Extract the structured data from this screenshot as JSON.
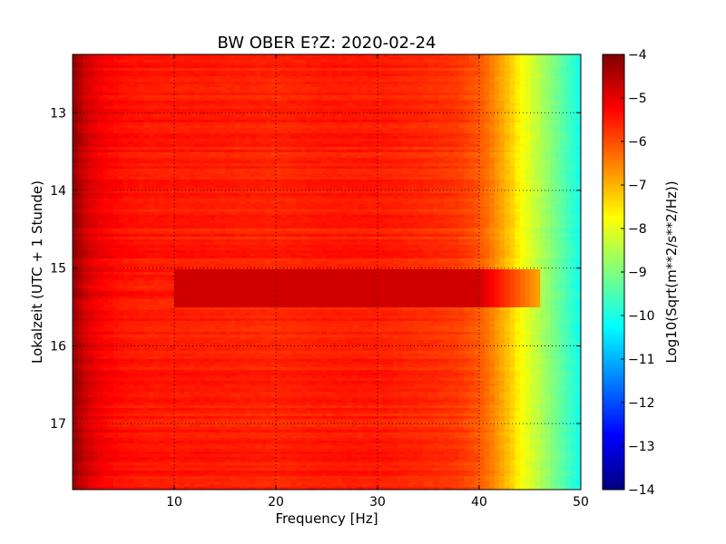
{
  "chart_data": {
    "type": "heatmap",
    "title": "BW OBER E?Z: 2020-02-24",
    "xlabel": "Frequency [Hz]",
    "ylabel": "Lokalzeit (UTC + 1 Stunde)",
    "xlim": [
      0,
      50
    ],
    "ylim": [
      12.25,
      17.85
    ],
    "x_ticks": [
      10,
      20,
      30,
      40,
      50
    ],
    "y_ticks": [
      13,
      14,
      15,
      16,
      17
    ],
    "y_inverted": true,
    "grid": true,
    "colormap": "jet",
    "colorbar": {
      "label": "Log10(Sqrt(m**2/s**2/Hz))",
      "range": [
        -14,
        -4
      ],
      "ticks": [
        -4,
        -5,
        -6,
        -7,
        -8,
        -9,
        -10,
        -11,
        -12,
        -13,
        -14
      ]
    },
    "frequency_profile_hz": [
      0,
      0.5,
      1,
      2,
      3,
      5,
      8,
      12,
      20,
      25,
      30,
      33,
      36,
      38,
      40,
      41,
      42,
      43,
      44,
      45,
      46,
      47,
      48,
      49,
      50
    ],
    "frequency_profile_log10": [
      -4.2,
      -4.4,
      -4.7,
      -5.0,
      -5.2,
      -5.4,
      -5.5,
      -5.5,
      -5.6,
      -5.5,
      -5.5,
      -5.6,
      -5.7,
      -5.8,
      -6.1,
      -6.4,
      -6.8,
      -7.2,
      -7.7,
      -8.1,
      -8.5,
      -8.9,
      -9.3,
      -9.7,
      -10.1
    ],
    "strong_band_hours": [
      15.0,
      15.5
    ],
    "strong_band_log10": -4.8
  }
}
